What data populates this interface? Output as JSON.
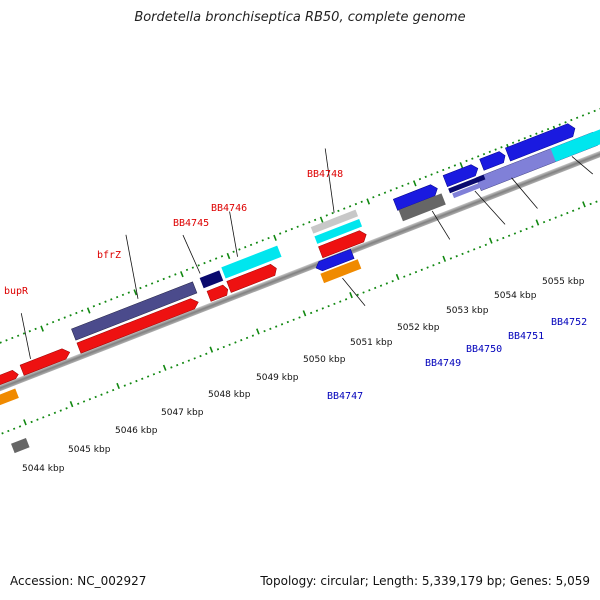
{
  "header": {
    "title": "Bordetella bronchiseptica RB50, complete genome"
  },
  "footer": {
    "accession": "Accession: NC_002927",
    "stats": "Topology: circular; Length: 5,339,179 bp; Genes: 5,059"
  },
  "scale": {
    "ticks": [
      "5044 kbp",
      "5045 kbp",
      "5046 kbp",
      "5047 kbp",
      "5048 kbp",
      "5049 kbp",
      "5050 kbp",
      "5051 kbp",
      "5052 kbp",
      "5053 kbp",
      "5054 kbp",
      "5055 kbp"
    ]
  },
  "genes_top": [
    "bupR",
    "bfrZ",
    "BB4745",
    "BB4746",
    "BB4748"
  ],
  "genes_bottom": [
    "BB4747",
    "BB4749",
    "BB4750",
    "BB4751",
    "BB4752"
  ],
  "colors": {
    "red": "#ee1111",
    "cyan": "#00e6ee",
    "blue": "#1a1ae0",
    "slate": "#4b4b8c",
    "navy": "#0a0a6e",
    "orange": "#f08a00",
    "grey": "#666666",
    "lavender": "#8080d8",
    "ticks": "#118811",
    "axis": "#888888"
  }
}
